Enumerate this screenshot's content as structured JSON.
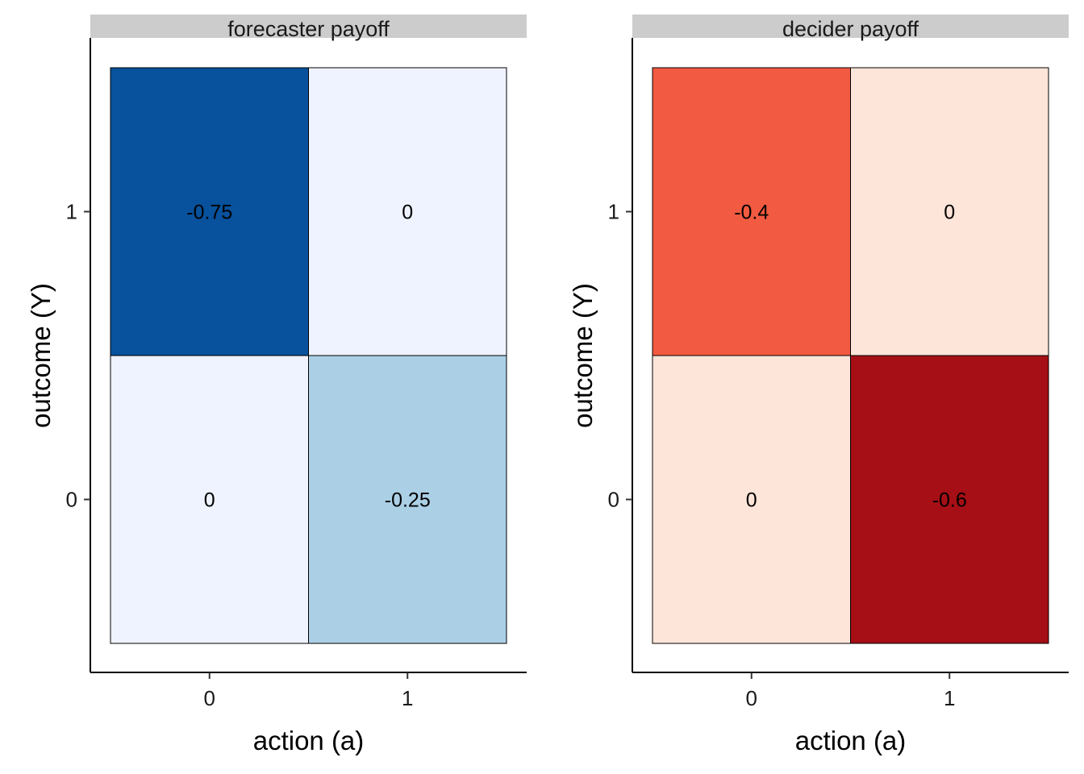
{
  "chart_data": [
    {
      "type": "heatmap",
      "title": "forecaster payoff",
      "xlabel": "action (a)",
      "ylabel": "outcome (Y)",
      "x_categories": [
        "0",
        "1"
      ],
      "y_categories": [
        "0",
        "1"
      ],
      "cells": [
        {
          "x": "0",
          "y": "1",
          "value": -0.75,
          "label": "-0.75",
          "color": "#08519c"
        },
        {
          "x": "1",
          "y": "1",
          "value": 0,
          "label": "0",
          "color": "#eff3ff"
        },
        {
          "x": "0",
          "y": "0",
          "value": 0,
          "label": "0",
          "color": "#eff3ff"
        },
        {
          "x": "1",
          "y": "0",
          "value": -0.25,
          "label": "-0.25",
          "color": "#abd0e6"
        }
      ],
      "legend": "none"
    },
    {
      "type": "heatmap",
      "title": "decider payoff",
      "xlabel": "action (a)",
      "ylabel": "outcome (Y)",
      "x_categories": [
        "0",
        "1"
      ],
      "y_categories": [
        "0",
        "1"
      ],
      "cells": [
        {
          "x": "0",
          "y": "1",
          "value": -0.4,
          "label": "-0.4",
          "color": "#f25a41"
        },
        {
          "x": "1",
          "y": "1",
          "value": 0,
          "label": "0",
          "color": "#fee5d9"
        },
        {
          "x": "0",
          "y": "0",
          "value": 0,
          "label": "0",
          "color": "#fee5d9"
        },
        {
          "x": "1",
          "y": "0",
          "value": -0.6,
          "label": "-0.6",
          "color": "#a50f15"
        }
      ],
      "legend": "none"
    }
  ]
}
